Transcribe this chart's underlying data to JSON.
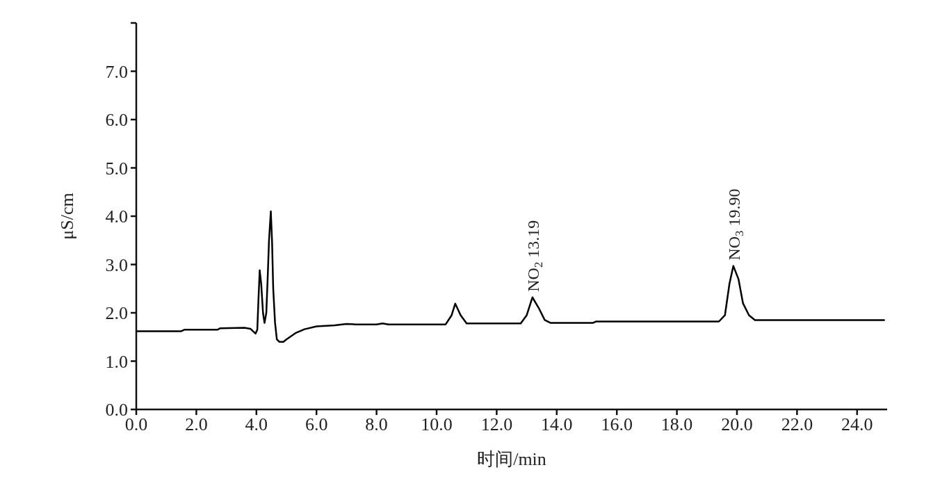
{
  "chart_data": {
    "type": "line",
    "xlabel": "时间/min",
    "ylabel": "μS/cm",
    "xlim": [
      0,
      25
    ],
    "xticks": [
      {
        "value": 0,
        "label": "0.0"
      },
      {
        "value": 2,
        "label": "2.0"
      },
      {
        "value": 4,
        "label": "4.0"
      },
      {
        "value": 6,
        "label": "6.0"
      },
      {
        "value": 8,
        "label": "8.0"
      },
      {
        "value": 10,
        "label": "10.0"
      },
      {
        "value": 12,
        "label": "12.0"
      },
      {
        "value": 14,
        "label": "14.0"
      },
      {
        "value": 16,
        "label": "16.0"
      },
      {
        "value": 18,
        "label": "18.0"
      },
      {
        "value": 20,
        "label": "20.0"
      },
      {
        "value": 22,
        "label": "22.0"
      },
      {
        "value": 24,
        "label": "24.0"
      }
    ],
    "ylim": [
      0,
      8
    ],
    "yticks": [
      {
        "value": 0,
        "label": "0.0"
      },
      {
        "value": 1,
        "label": "1.0"
      },
      {
        "value": 2,
        "label": "2.0"
      },
      {
        "value": 3,
        "label": "3.0"
      },
      {
        "value": 4,
        "label": "4.0"
      },
      {
        "value": 5,
        "label": "5.0"
      },
      {
        "value": 6,
        "label": "6.0"
      },
      {
        "value": 7,
        "label": "7.0"
      },
      {
        "value": 8,
        "label": null
      }
    ],
    "grid": false,
    "marker": "none",
    "line_style": "solid",
    "series": [
      {
        "color": "#000000",
        "x": [
          0,
          1.5,
          1.6,
          2.7,
          2.8,
          3.6,
          3.8,
          3.97,
          4.03,
          4.07,
          4.11,
          4.16,
          4.22,
          4.27,
          4.33,
          4.38,
          4.42,
          4.48,
          4.52,
          4.56,
          4.62,
          4.68,
          4.76,
          4.9,
          5.0,
          5.3,
          5.6,
          6.0,
          6.6,
          7.0,
          7.3,
          8.0,
          8.2,
          8.4,
          10.3,
          10.5,
          10.62,
          10.8,
          11.0,
          12.8,
          13.0,
          13.19,
          13.4,
          13.6,
          13.8,
          15.2,
          15.3,
          19.4,
          19.6,
          19.75,
          19.88,
          20.05,
          20.2,
          20.4,
          20.6,
          24.9
        ],
        "values": [
          1.62,
          1.62,
          1.65,
          1.65,
          1.68,
          1.69,
          1.67,
          1.57,
          1.65,
          2.3,
          2.88,
          2.6,
          2.0,
          1.79,
          2.0,
          2.8,
          3.5,
          4.1,
          3.5,
          2.5,
          1.8,
          1.45,
          1.4,
          1.4,
          1.45,
          1.58,
          1.66,
          1.72,
          1.74,
          1.77,
          1.76,
          1.76,
          1.78,
          1.76,
          1.76,
          1.95,
          2.19,
          1.95,
          1.78,
          1.78,
          1.95,
          2.32,
          2.1,
          1.85,
          1.79,
          1.79,
          1.82,
          1.82,
          1.95,
          2.6,
          2.97,
          2.7,
          2.2,
          1.95,
          1.85,
          1.85
        ]
      }
    ],
    "annotations": [
      {
        "text": "NO$_{2}$ 13.19",
        "x": 13.19,
        "y": 2.32
      },
      {
        "text": "NO$_{3}$ 19.90",
        "x": 19.88,
        "y": 2.97
      }
    ]
  }
}
